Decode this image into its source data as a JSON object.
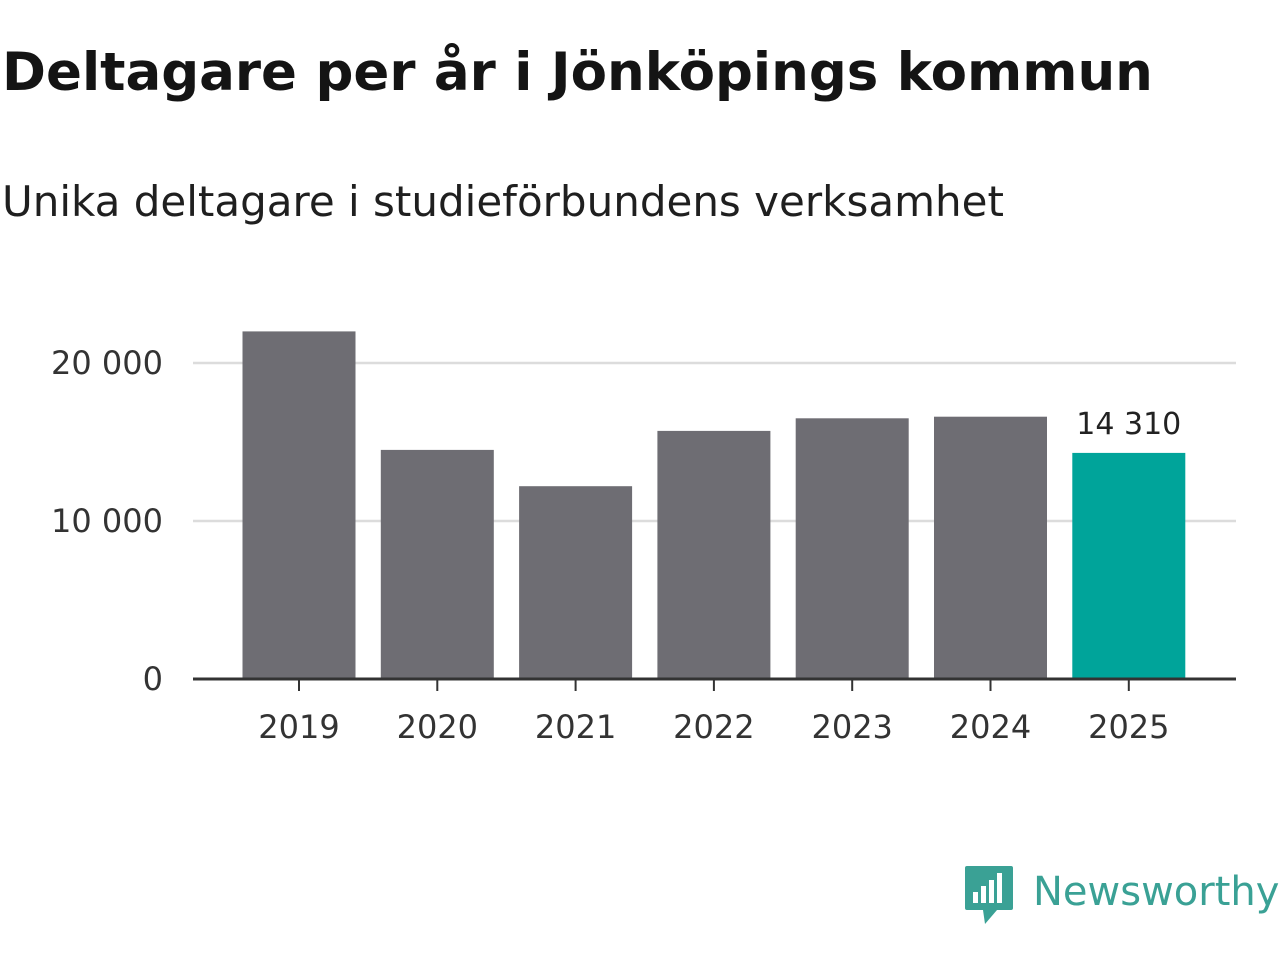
{
  "header": {
    "title": "Deltagare per år i Jönköpings kommun",
    "subtitle": "Unika deltagare i studieförbundens verksamhet"
  },
  "brand": {
    "name": "Newsworthy",
    "icon": "newsworthy-logo-icon",
    "color": "#3aa195"
  },
  "chart_data": {
    "type": "bar",
    "title": "Deltagare per år i Jönköpings kommun",
    "subtitle": "Unika deltagare i studieförbundens verksamhet",
    "xlabel": "",
    "ylabel": "",
    "categories": [
      "2019",
      "2020",
      "2021",
      "2022",
      "2023",
      "2024",
      "2025"
    ],
    "values": [
      22000,
      14500,
      12200,
      15700,
      16500,
      16600,
      14310
    ],
    "ylim": [
      0,
      22000
    ],
    "yticks": [
      0,
      10000,
      20000
    ],
    "ytick_labels": [
      "0",
      "10 000",
      "20 000"
    ],
    "grid": true,
    "legend": "none",
    "bar_color": "#6e6d73",
    "highlight_color": "#00a49a",
    "highlight_index": 6,
    "annotations": [
      {
        "category": "2025",
        "label": "14 310"
      }
    ]
  }
}
